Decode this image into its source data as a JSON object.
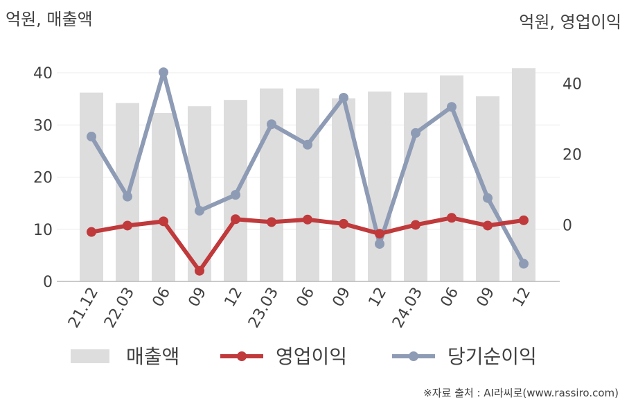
{
  "chart_data": {
    "type": "bar+line",
    "left_axis_unit": "억원, 매출액",
    "right_axis_unit": "억원, 영업이익",
    "categories": [
      "21.12",
      "22.03",
      "06",
      "09",
      "12",
      "23.03",
      "06",
      "09",
      "12",
      "24.03",
      "06",
      "09",
      "12"
    ],
    "left_axis": {
      "range": [
        0,
        42
      ],
      "ticks": [
        0,
        10,
        20,
        30,
        40
      ]
    },
    "right_axis": {
      "range": [
        -16,
        46
      ],
      "ticks": [
        0,
        20,
        40
      ]
    },
    "grid": true,
    "legend_position": "bottom",
    "series": [
      {
        "name": "매출액",
        "type": "bar",
        "axis": "left",
        "color": "#dddddd",
        "values": [
          36.2,
          34.2,
          32.3,
          33.6,
          34.8,
          37.0,
          37.0,
          35.1,
          36.4,
          36.2,
          39.5,
          35.5,
          40.9
        ]
      },
      {
        "name": "영업이익",
        "type": "line",
        "axis": "right",
        "color": "#c0393b",
        "values": [
          -2.0,
          -0.2,
          1.0,
          -13.0,
          1.6,
          0.8,
          1.5,
          0.3,
          -2.5,
          0.0,
          2.0,
          -0.2,
          1.3
        ]
      },
      {
        "name": "당기순이익",
        "type": "line",
        "axis": "right",
        "color": "#8e9bb5",
        "values": [
          25.0,
          8.0,
          43.2,
          4.0,
          8.5,
          28.5,
          22.7,
          36.0,
          -5.4,
          26.0,
          33.4,
          7.6,
          -11.0
        ]
      }
    ]
  },
  "source": "※자료 출처 : AI라씨로(www.rassiro.com)"
}
